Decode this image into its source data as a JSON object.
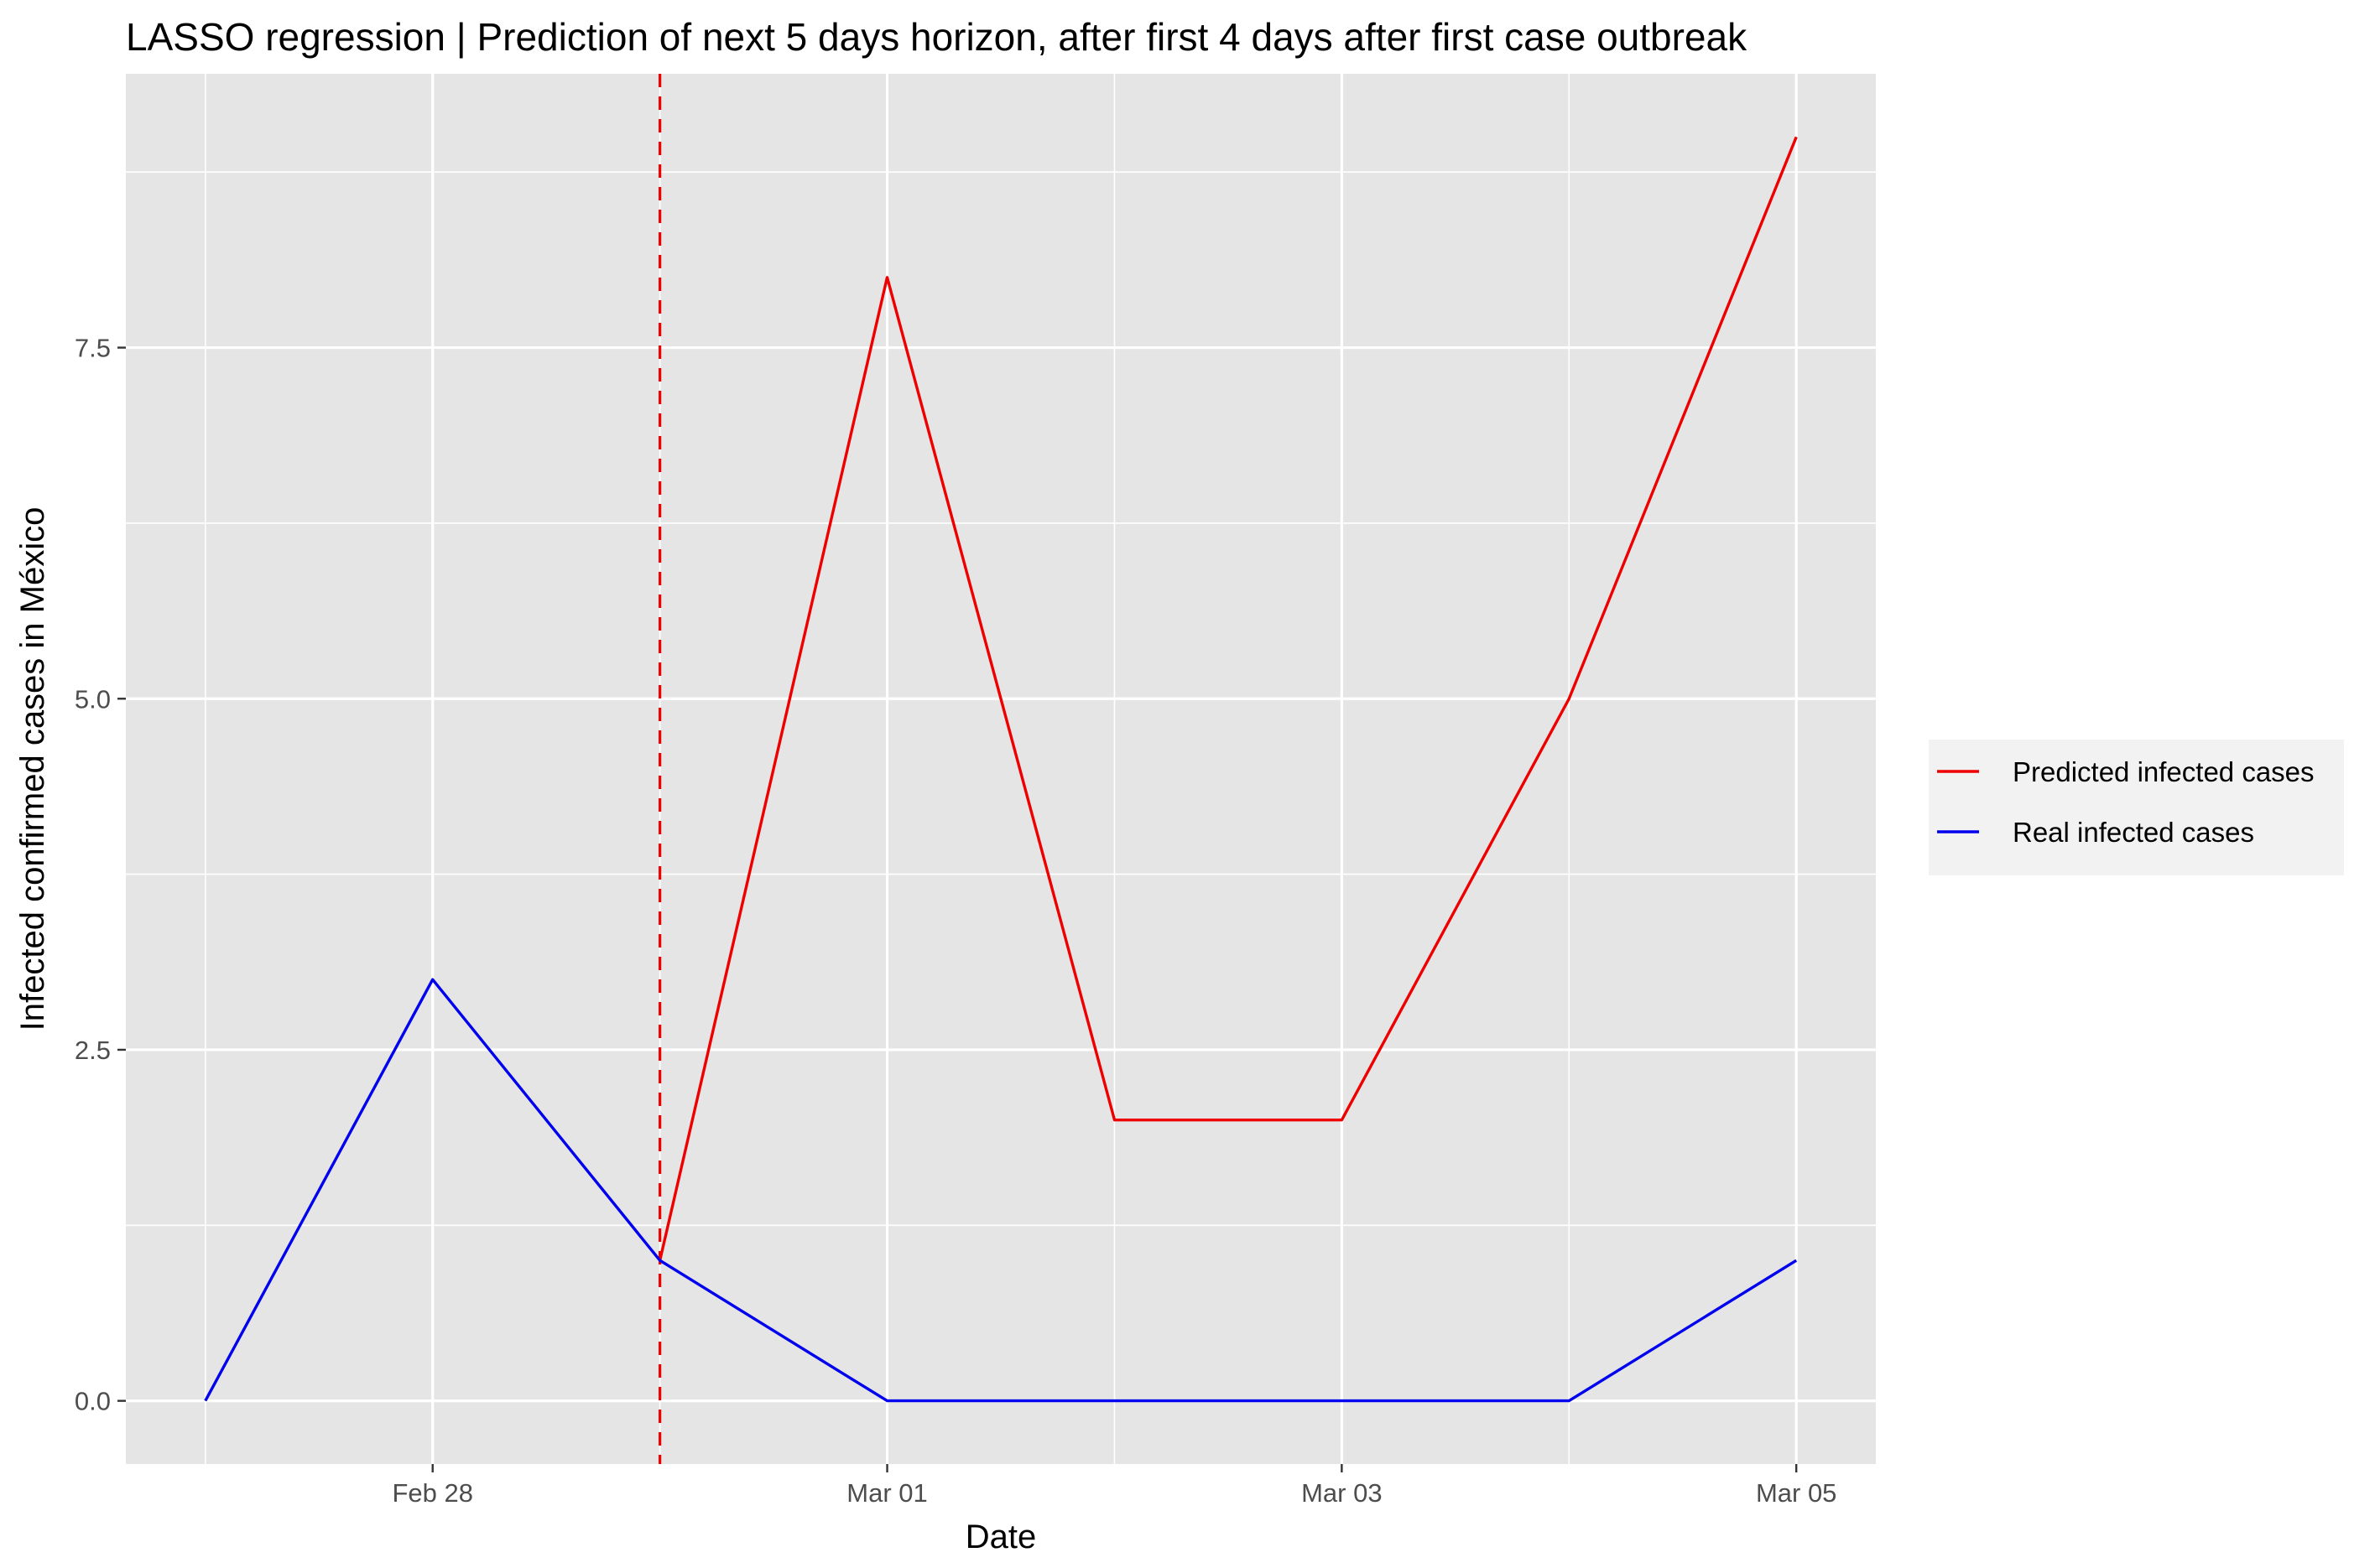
{
  "chart_data": {
    "type": "line",
    "title": "LASSO regression | Prediction of next 5 days horizon, after first 4 days after first case outbreak",
    "xlabel": "Date",
    "ylabel": "Infected confirmed cases in México",
    "x": [
      "2020-02-27",
      "2020-02-28",
      "2020-02-29",
      "2020-03-01",
      "2020-03-02",
      "2020-03-03",
      "2020-03-04",
      "2020-03-05"
    ],
    "x_ticks": [
      "2020-02-28",
      "2020-03-01",
      "2020-03-03",
      "2020-03-05"
    ],
    "x_tick_labels": [
      "Feb 28",
      "Mar 01",
      "Mar 03",
      "Mar 05"
    ],
    "y_ticks": [
      0.0,
      2.5,
      5.0,
      7.5
    ],
    "y_tick_labels": [
      "0.0",
      "2.5",
      "5.0",
      "7.5"
    ],
    "xlim": [
      "2020-02-26",
      "2020-03-05"
    ],
    "ylim": [
      -0.45,
      9.45
    ],
    "grid": true,
    "legend_position": "right",
    "vline": {
      "x": "2020-02-29",
      "color": "#ee0000",
      "style": "dashed"
    },
    "series": [
      {
        "name": "Predicted infected cases",
        "color": "#ee0000",
        "x": [
          "2020-02-29",
          "2020-03-01",
          "2020-03-02",
          "2020-03-03",
          "2020-03-04",
          "2020-03-05"
        ],
        "values": [
          1,
          8,
          2,
          2,
          5,
          9
        ]
      },
      {
        "name": "Real infected cases",
        "color": "#0000ee",
        "x": [
          "2020-02-27",
          "2020-02-28",
          "2020-02-29",
          "2020-03-01",
          "2020-03-02",
          "2020-03-03",
          "2020-03-04",
          "2020-03-05"
        ],
        "values": [
          0,
          3,
          1,
          0,
          0,
          0,
          0,
          1
        ]
      }
    ]
  }
}
